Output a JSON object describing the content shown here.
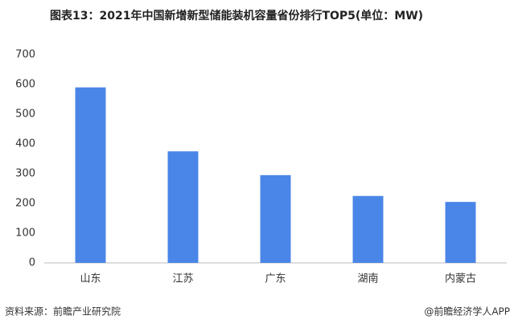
{
  "chart_data": {
    "type": "bar",
    "title": "图表13：2021年中国新增新型储能装机容量省份排行TOP5(单位：MW)",
    "categories": [
      "山东",
      "江苏",
      "广东",
      "湖南",
      "内蒙古"
    ],
    "values": [
      590,
      375,
      295,
      225,
      205
    ],
    "color": "#4a86e8",
    "ylim": [
      0,
      700
    ],
    "yticks": [
      0,
      100,
      200,
      300,
      400,
      500,
      600,
      700
    ],
    "grid": false,
    "source": "资料来源：前瞻产业研究院",
    "credit": "@前瞻经济学人APP"
  }
}
